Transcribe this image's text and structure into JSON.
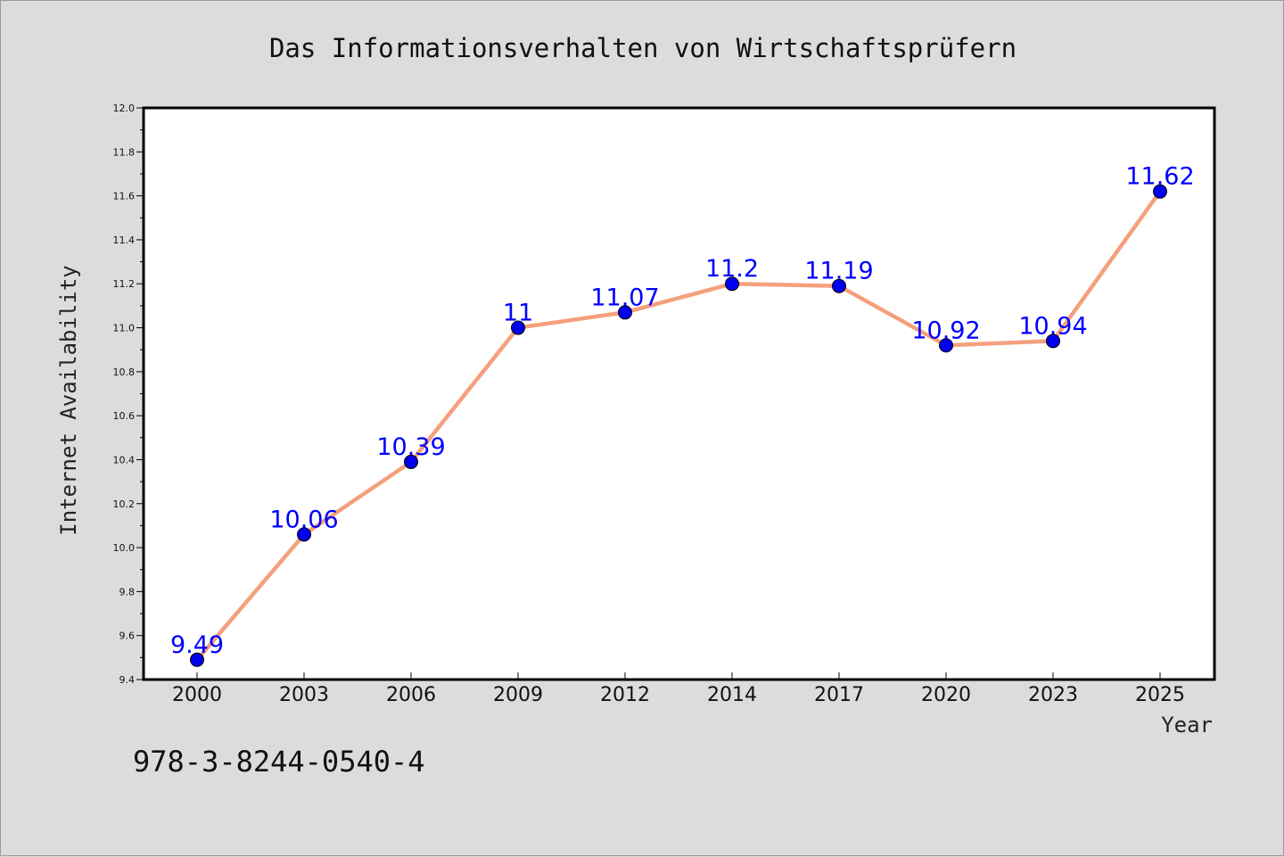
{
  "chart_data": {
    "type": "line",
    "title": "Das Informationsverhalten von Wirtschaftsprüfern",
    "xlabel": "Year",
    "ylabel": "Internet Availability",
    "categories": [
      "2000",
      "2003",
      "2006",
      "2009",
      "2012",
      "2014",
      "2017",
      "2020",
      "2023",
      "2025"
    ],
    "series": [
      {
        "values": [
          9.49,
          10.06,
          10.39,
          11,
          11.07,
          11.2,
          11.19,
          10.92,
          10.94,
          11.62
        ],
        "labels": [
          "9.49",
          "10.06",
          "10.39",
          "11",
          "11.07",
          "11.2",
          "11.19",
          "10.92",
          "10.94",
          "11.62"
        ]
      }
    ],
    "ylim": [
      9.4,
      12.0
    ],
    "yticks": [
      "9.4",
      "9.6",
      "9.8",
      "10.0",
      "10.2",
      "10.4",
      "10.6",
      "10.8",
      "11.0",
      "11.2",
      "11.4",
      "11.6",
      "11.8",
      "12.0"
    ],
    "grid": false,
    "line_color": "#f4a07c",
    "marker_color": "#0000ee",
    "label_color": "#0000ff"
  },
  "footer_text": "978-3-8244-0540-4"
}
